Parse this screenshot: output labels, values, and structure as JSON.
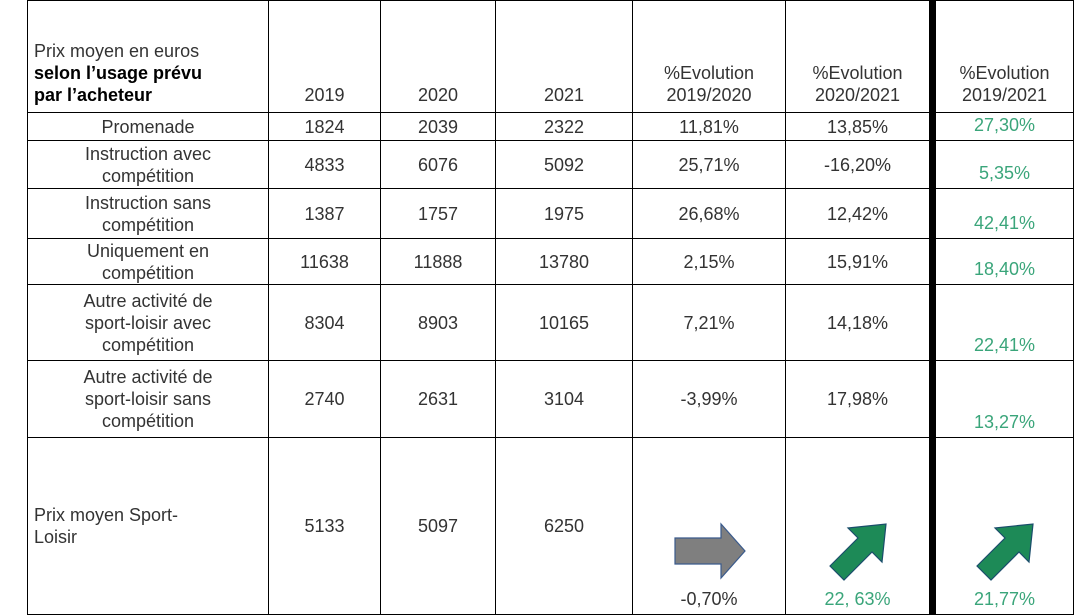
{
  "header": {
    "label_line1": "Prix moyen en euros",
    "label_bold": "selon l’usage prévu par l’acheteur",
    "columns": [
      "2019",
      "2020",
      "2021",
      "%Evolution 2019/2020",
      "%Evolution 2020/2021",
      "%Evolution 2019/2021"
    ]
  },
  "rows": [
    {
      "label": "Promenade",
      "cells": [
        "1824",
        "2039",
        "2322",
        "11,81%",
        "13,85%",
        "27,30%"
      ]
    },
    {
      "label": "Instruction avec compétition",
      "cells": [
        "4833",
        "6076",
        "5092",
        "25,71%",
        "-16,20%",
        "5,35%"
      ]
    },
    {
      "label": "Instruction sans compétition",
      "cells": [
        "1387",
        "1757",
        "1975",
        "26,68%",
        "12,42%",
        "42,41%"
      ]
    },
    {
      "label": "Uniquement en compétition",
      "cells": [
        "11638",
        "11888",
        "13780",
        "2,15%",
        "15,91%",
        "18,40%"
      ]
    },
    {
      "label": "Autre activité de sport-loisir avec compétition",
      "cells": [
        "8304",
        "8903",
        "10165",
        "7,21%",
        "14,18%",
        "22,41%"
      ]
    },
    {
      "label": "Autre activité de sport-loisir sans compétition",
      "cells": [
        "2740",
        "2631",
        "3104",
        "-3,99%",
        "17,98%",
        "13,27%"
      ]
    },
    {
      "label": "Prix moyen Sport-Loisir",
      "cells": [
        "5133",
        "5097",
        "6250",
        "-0,70%",
        "22, 63%",
        "21,77%"
      ]
    }
  ]
}
